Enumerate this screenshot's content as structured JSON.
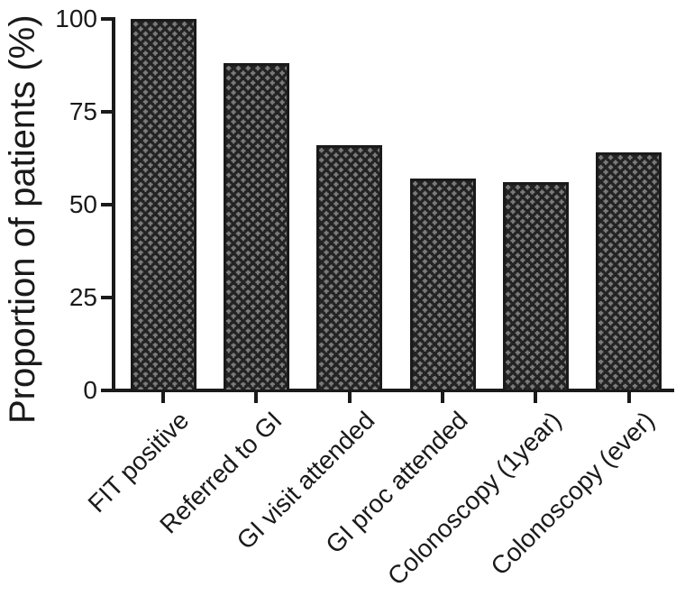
{
  "figure": {
    "background_color": "#ffffff",
    "ink_color": "#1a1a1a",
    "bar_fill_base_color": "#7b7b7b",
    "bar_fill_check_color": "#232323",
    "bar_pattern": "checkerboard-weave"
  },
  "chart_data": {
    "type": "bar",
    "title": "",
    "xlabel": "",
    "ylabel": "Proportion of patients (%)",
    "categories": [
      "FIT positive",
      "Referred to GI",
      "GI visit attended",
      "GI proc attended",
      "Colonoscopy (1year)",
      "Colonoscopy (ever)"
    ],
    "values": [
      100,
      88,
      66,
      57,
      56,
      64
    ],
    "ylim": [
      0,
      100
    ],
    "yticks": [
      0,
      25,
      50,
      75,
      100
    ],
    "grid": false,
    "legend": null,
    "x_tick_label_rotation_deg": 45
  }
}
